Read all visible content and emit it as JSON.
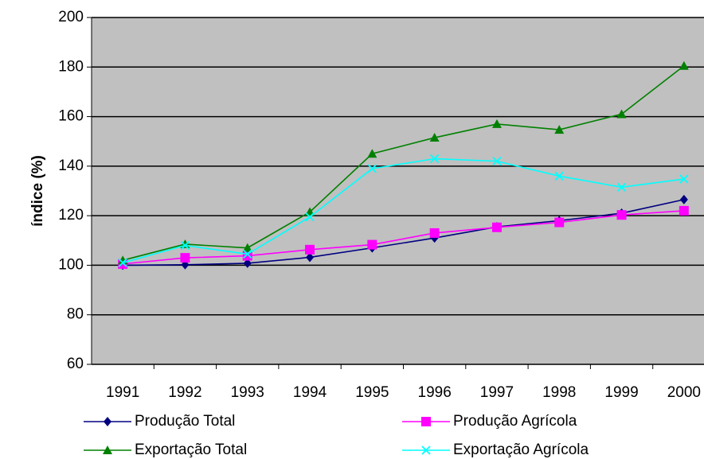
{
  "chart_data": {
    "type": "line",
    "y_label": "índice (%)",
    "categories": [
      "1991",
      "1992",
      "1993",
      "1994",
      "1995",
      "1996",
      "1997",
      "1998",
      "1999",
      "2000"
    ],
    "series": [
      {
        "name": "Produção Total",
        "color": "#000080",
        "marker": "diamond",
        "values": [
          100,
          100.2,
          100.8,
          103.2,
          107,
          111,
          115.5,
          118,
          121,
          126.5
        ]
      },
      {
        "name": "Produção Agrícola",
        "color": "#ff00ff",
        "marker": "square",
        "values": [
          100.5,
          103,
          103.8,
          106.3,
          108.3,
          113,
          115.3,
          117.3,
          120.3,
          122
        ]
      },
      {
        "name": "Exportação Total",
        "color": "#008000",
        "marker": "triangle",
        "values": [
          102,
          108.5,
          107,
          121.5,
          145,
          151.5,
          157,
          154.7,
          161,
          180.5
        ]
      },
      {
        "name": "Exportação Agrícola",
        "color": "#00ffff",
        "marker": "x",
        "values": [
          101,
          108,
          104.5,
          119.5,
          139,
          143,
          142,
          136,
          131.5,
          134.8
        ]
      }
    ],
    "ylim": [
      60,
      200
    ],
    "yticks": [
      60,
      80,
      100,
      120,
      140,
      160,
      180,
      200
    ],
    "grid": true,
    "plot_background": "#c0c0c0"
  }
}
